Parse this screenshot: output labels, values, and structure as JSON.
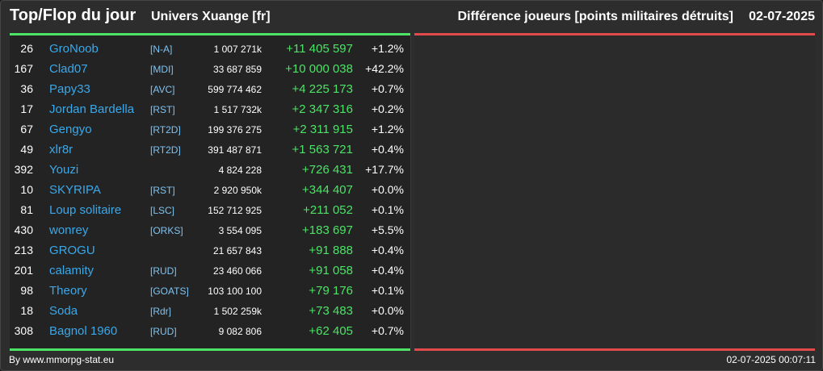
{
  "header": {
    "title": "Top/Flop du jour",
    "universe": "Univers Xuange [fr]",
    "subtitle": "Différence joueurs [points militaires détruits]",
    "date": "02-07-2025"
  },
  "colors": {
    "top_accent": "#4ce366",
    "flop_accent": "#e04a4a",
    "player_link": "#3aa8ea",
    "alliance": "#7fc3f0"
  },
  "top_rows": [
    {
      "rank": "26",
      "name": "GroNoob",
      "alliance": "[N-A]",
      "points": "1 007 271k",
      "diff": "+11 405 597",
      "pct": "+1.2%"
    },
    {
      "rank": "167",
      "name": "Clad07",
      "alliance": "[MDI]",
      "points": "33 687 859",
      "diff": "+10 000 038",
      "pct": "+42.2%"
    },
    {
      "rank": "36",
      "name": "Papy33",
      "alliance": "[AVC]",
      "points": "599 774 462",
      "diff": "+4 225 173",
      "pct": "+0.7%"
    },
    {
      "rank": "17",
      "name": "Jordan Bardella",
      "alliance": "[RST]",
      "points": "1 517 732k",
      "diff": "+2 347 316",
      "pct": "+0.2%"
    },
    {
      "rank": "67",
      "name": "Gengyo",
      "alliance": "[RT2D]",
      "points": "199 376 275",
      "diff": "+2 311 915",
      "pct": "+1.2%"
    },
    {
      "rank": "49",
      "name": "xlr8r",
      "alliance": "[RT2D]",
      "points": "391 487 871",
      "diff": "+1 563 721",
      "pct": "+0.4%"
    },
    {
      "rank": "392",
      "name": "Youzi",
      "alliance": "",
      "points": "4 824 228",
      "diff": "+726 431",
      "pct": "+17.7%"
    },
    {
      "rank": "10",
      "name": "SKYRIPA",
      "alliance": "[RST]",
      "points": "2 920 950k",
      "diff": "+344 407",
      "pct": "+0.0%"
    },
    {
      "rank": "81",
      "name": "Loup solitaire",
      "alliance": "[LSC]",
      "points": "152 712 925",
      "diff": "+211 052",
      "pct": "+0.1%"
    },
    {
      "rank": "430",
      "name": "wonrey",
      "alliance": "[ORKS]",
      "points": "3 554 095",
      "diff": "+183 697",
      "pct": "+5.5%"
    },
    {
      "rank": "213",
      "name": "GROGU",
      "alliance": "",
      "points": "21 657 843",
      "diff": "+91 888",
      "pct": "+0.4%"
    },
    {
      "rank": "201",
      "name": "calamity",
      "alliance": "[RUD]",
      "points": "23 460 066",
      "diff": "+91 058",
      "pct": "+0.4%"
    },
    {
      "rank": "98",
      "name": "Theory",
      "alliance": "[GOATS]",
      "points": "103 100 100",
      "diff": "+79 176",
      "pct": "+0.1%"
    },
    {
      "rank": "18",
      "name": "Soda",
      "alliance": "[Rdr]",
      "points": "1 502 259k",
      "diff": "+73 483",
      "pct": "+0.0%"
    },
    {
      "rank": "308",
      "name": "Bagnol 1960",
      "alliance": "[RUD]",
      "points": "9 082 806",
      "diff": "+62 405",
      "pct": "+0.7%"
    }
  ],
  "footer": {
    "credit": "By www.mmorpg-stat.eu",
    "timestamp": "02-07-2025 00:07:11"
  }
}
